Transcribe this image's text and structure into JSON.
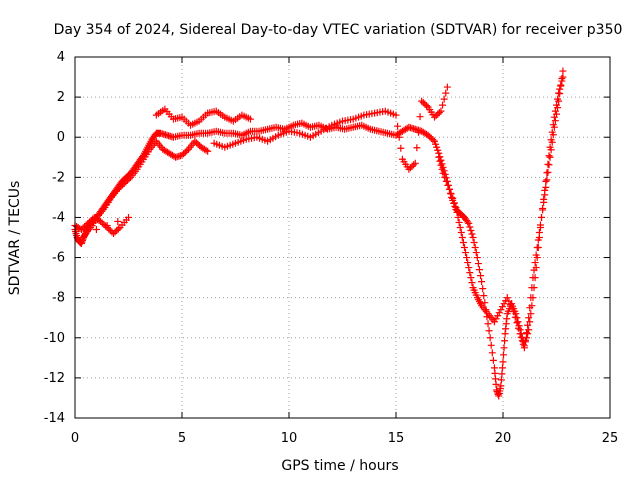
{
  "chart_data": {
    "type": "scatter",
    "title": "Day 354 of 2024, Sidereal Day-to-day VTEC variation (SDTVAR) for receiver p350",
    "xlabel": "GPS time / hours",
    "ylabel": "SDTVAR / TECUs",
    "xlim": [
      0,
      25
    ],
    "ylim": [
      -14,
      4
    ],
    "xticks": [
      "0",
      "5",
      "10",
      "15",
      "20",
      "25"
    ],
    "yticks": [
      "-14",
      "-12",
      "-10",
      "-8",
      "-6",
      "-4",
      "-2",
      "0",
      "2",
      "4"
    ],
    "grid": true,
    "marker": "+",
    "color": "#ff0000",
    "series": [
      {
        "x": [
          0.0,
          0.1,
          0.2,
          0.3,
          0.4,
          0.5,
          0.6,
          0.8,
          1.0,
          1.2,
          1.4,
          1.6,
          1.8,
          2.0,
          2.2,
          2.4,
          2.6,
          2.8,
          3.0,
          3.2,
          3.4,
          3.6,
          3.8,
          4.0,
          4.3,
          4.6,
          5.0,
          5.4,
          5.8,
          6.2,
          6.6,
          7.0,
          7.4,
          7.8,
          8.2,
          8.6,
          9.0,
          9.4,
          9.8,
          10.2,
          10.6,
          11.0,
          11.4,
          11.8,
          12.2,
          12.6,
          13.0,
          13.4,
          13.8,
          14.2,
          14.6,
          15.0,
          15.3,
          15.6,
          15.9,
          16.2,
          16.5,
          16.8,
          17.0,
          17.2,
          17.4,
          17.6,
          17.8,
          18.0,
          18.2,
          18.4,
          18.6,
          18.8,
          19.0,
          19.2,
          19.4,
          19.6,
          19.7,
          19.8,
          19.9,
          20.0,
          20.1,
          20.2,
          20.4,
          20.6,
          20.8,
          21.0,
          21.2,
          21.4,
          21.6,
          21.8,
          22.0,
          22.2,
          22.4,
          22.6,
          22.8
        ],
        "y": [
          -4.6,
          -5.0,
          -5.2,
          -5.3,
          -5.0,
          -4.8,
          -4.5,
          -4.2,
          -4.0,
          -3.7,
          -3.4,
          -3.1,
          -2.8,
          -2.5,
          -2.2,
          -2.0,
          -1.8,
          -1.5,
          -1.2,
          -0.9,
          -0.5,
          -0.1,
          0.2,
          0.2,
          0.1,
          0.0,
          0.1,
          0.1,
          0.2,
          0.2,
          0.3,
          0.2,
          0.2,
          0.1,
          0.3,
          0.3,
          0.4,
          0.5,
          0.4,
          0.6,
          0.7,
          0.5,
          0.6,
          0.4,
          0.5,
          0.4,
          0.5,
          0.6,
          0.4,
          0.3,
          0.2,
          0.1,
          0.3,
          0.5,
          0.4,
          0.3,
          0.1,
          -0.2,
          -0.8,
          -1.5,
          -2.2,
          -3.0,
          -3.6,
          -3.8,
          -4.0,
          -4.3,
          -5.0,
          -6.0,
          -7.2,
          -8.6,
          -10.0,
          -11.5,
          -12.6,
          -12.9,
          -12.4,
          -11.2,
          -9.8,
          -8.8,
          -8.3,
          -8.8,
          -9.6,
          -10.4,
          -9.6,
          -8.0,
          -6.0,
          -4.0,
          -2.2,
          -0.5,
          1.0,
          2.2,
          3.0
        ]
      },
      {
        "x": [
          0.0,
          0.3,
          0.6,
          0.9,
          1.2,
          1.5,
          1.8,
          2.1,
          2.5,
          0.5,
          0.8,
          1.1,
          1.4,
          1.7,
          2.0,
          2.3,
          2.6,
          2.9,
          3.2,
          3.5,
          3.8,
          4.1,
          4.4,
          4.7,
          5.0,
          5.3,
          5.6,
          5.9,
          6.2
        ],
        "y": [
          -4.4,
          -4.6,
          -4.3,
          -4.0,
          -4.2,
          -4.5,
          -4.8,
          -4.5,
          -4.0,
          -4.8,
          -4.4,
          -3.9,
          -3.5,
          -3.0,
          -2.6,
          -2.3,
          -2.0,
          -1.6,
          -1.1,
          -0.6,
          -0.2,
          -0.6,
          -0.8,
          -1.0,
          -0.9,
          -0.6,
          -0.2,
          -0.5,
          -0.7
        ]
      },
      {
        "x": [
          6.5,
          7.0,
          7.5,
          8.0,
          8.5,
          9.0,
          9.5,
          10.0,
          10.5,
          11.0,
          11.5,
          12.0,
          12.5,
          13.0,
          13.5,
          14.0,
          14.5,
          15.0,
          15.3,
          15.6,
          15.9,
          16.2,
          16.5,
          16.8,
          17.1,
          17.4
        ],
        "y": [
          -0.3,
          -0.5,
          -0.3,
          -0.1,
          0.0,
          -0.2,
          0.1,
          0.3,
          0.2,
          0.0,
          0.3,
          0.6,
          0.8,
          0.9,
          1.1,
          1.2,
          1.3,
          1.1,
          -1.1,
          -1.6,
          -1.3,
          1.8,
          1.5,
          1.0,
          1.3,
          2.5
        ]
      },
      {
        "x": [
          3.8,
          4.2,
          4.6,
          5.0,
          5.4,
          5.8,
          6.2,
          6.6,
          7.0,
          7.4,
          7.8,
          8.2
        ],
        "y": [
          1.1,
          1.4,
          0.9,
          1.0,
          0.6,
          0.8,
          1.2,
          1.3,
          1.0,
          0.8,
          1.1,
          0.9
        ]
      },
      {
        "x": [
          17.0,
          17.2,
          17.5,
          17.8,
          18.0,
          18.2,
          18.4,
          18.6,
          18.8,
          19.0,
          19.3,
          19.6,
          19.9,
          20.2,
          20.5,
          20.8,
          21.0,
          21.2,
          21.4,
          21.6,
          21.8,
          22.0,
          22.2,
          22.4,
          22.6,
          22.8
        ],
        "y": [
          -1.0,
          -1.8,
          -2.6,
          -3.5,
          -4.5,
          -5.5,
          -6.5,
          -7.5,
          -8.0,
          -8.4,
          -8.8,
          -9.2,
          -8.6,
          -8.0,
          -8.7,
          -9.8,
          -10.5,
          -9.0,
          -7.0,
          -5.5,
          -4.0,
          -2.5,
          -1.0,
          0.5,
          1.8,
          3.3
        ]
      }
    ]
  }
}
